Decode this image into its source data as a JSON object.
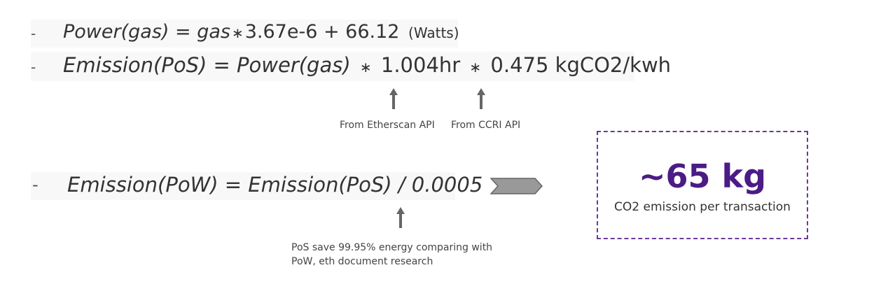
{
  "formulas": {
    "power": {
      "bullet": "-",
      "lhs": "Power(gas) = gas",
      "op": "∗",
      "rhs": "3.67e-6 + 66.12",
      "unit": "(Watts)"
    },
    "emission_pos": {
      "bullet": "-",
      "lhs": "Emission(PoS) = Power(gas)",
      "op1": "∗",
      "term1": "1.004hr",
      "op2": "∗",
      "term2": "0.475 kgCO2/kwh"
    },
    "emission_pow": {
      "bullet": "-",
      "text": "Emission(PoW) = Emission(PoS) / 0.0005"
    }
  },
  "annotations": {
    "etherscan": "From Etherscan API",
    "ccri": "From CCRI API",
    "research_line1": "PoS save 99.95% energy comparing with",
    "research_line2": "PoW, eth document research"
  },
  "result": {
    "value": "~65 kg",
    "label": "CO2 emission per transaction"
  },
  "colors": {
    "accent": "#4b1b86",
    "box_border": "#6a3a9a",
    "arrow_fill": "#999999",
    "arrow_stroke": "#666666"
  },
  "icons": {
    "flow_arrow": "chevron-right-icon",
    "pointer": "arrow-up-icon"
  }
}
